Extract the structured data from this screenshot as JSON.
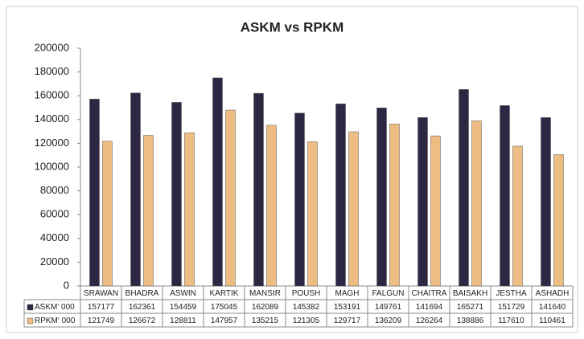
{
  "chart_data": {
    "type": "bar",
    "title": "ASKM vs RPKM",
    "categories": [
      "SRAWAN",
      "BHADRA",
      "ASWIN",
      "KARTIK",
      "MANSIR",
      "POUSH",
      "MAGH",
      "FALGUN",
      "CHAITRA",
      "BAISAKH",
      "JESTHA",
      "ASHADH"
    ],
    "series": [
      {
        "name": "ASKM' 000",
        "color": "#2d2743",
        "values": [
          157177,
          162361,
          154459,
          175045,
          162089,
          145382,
          153191,
          149761,
          141694,
          165271,
          151729,
          141640
        ]
      },
      {
        "name": "RPKM' 000",
        "color": "#eebd84",
        "values": [
          121749,
          126672,
          128811,
          147957,
          135215,
          121305,
          129717,
          136209,
          126264,
          138886,
          117610,
          110461
        ]
      }
    ],
    "ylim": [
      0,
      200000
    ],
    "yticks": [
      0,
      20000,
      40000,
      60000,
      80000,
      100000,
      120000,
      140000,
      160000,
      180000,
      200000
    ],
    "grid": false,
    "legend": "table"
  }
}
